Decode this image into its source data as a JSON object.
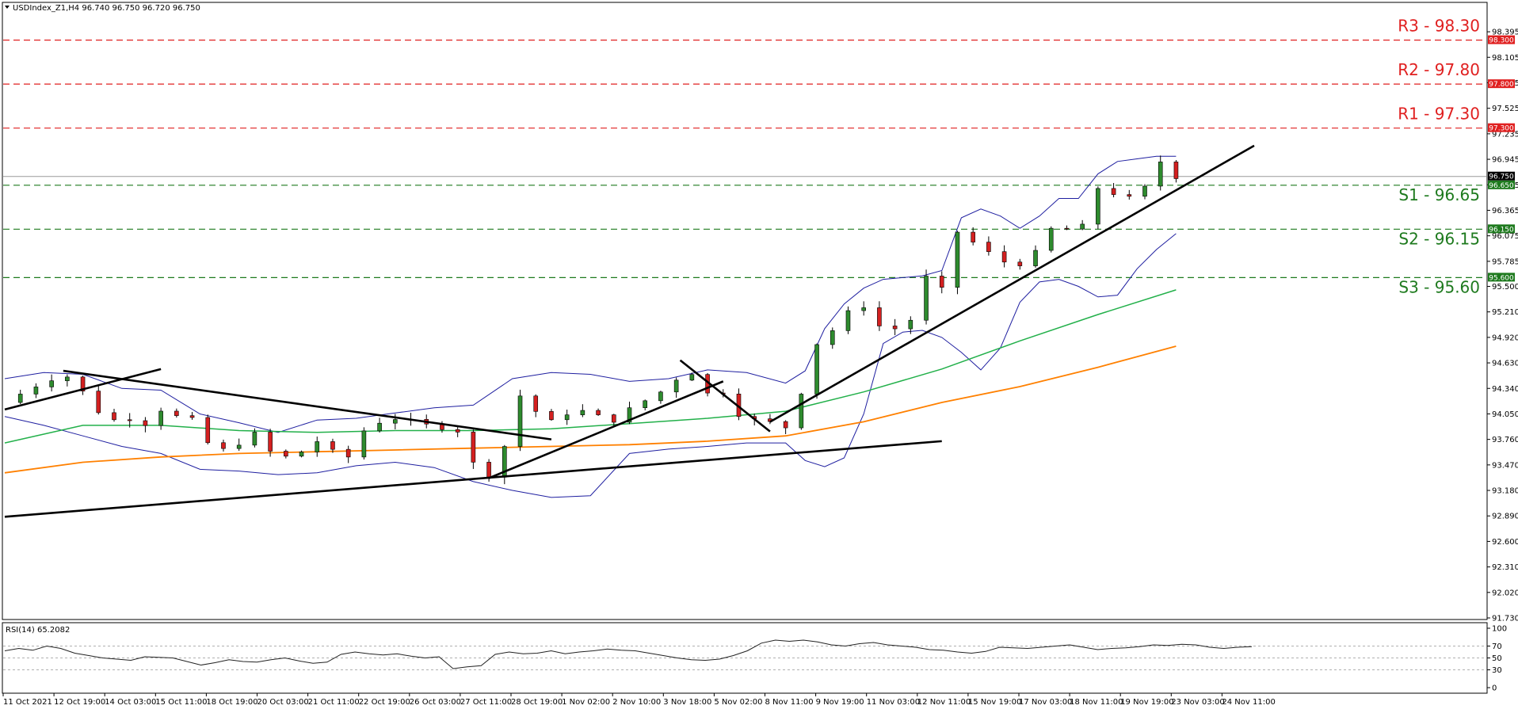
{
  "header": {
    "symbol_line": "USDIndex_Z1,H4  96.740 96.750 96.720 96.750",
    "rsi_line": "RSI(14) 65.2082"
  },
  "colors": {
    "bull": "#2e8b2e",
    "bear": "#d42020",
    "bb": "#1f1fa0",
    "sma100": "#22b04a",
    "sma200": "#ff8000",
    "resistance": "#e02020",
    "support": "#1e7a1e",
    "trend": "#000000",
    "badge_current": "#000000"
  },
  "chart_data": [
    {
      "type": "candlestick",
      "name": "USDIndex_Z1,H4",
      "ylim": [
        91.73,
        98.45
      ],
      "y_ticks": [
        "98.395",
        "98.105",
        "97.815",
        "97.525",
        "97.235",
        "96.945",
        "96.655",
        "96.365",
        "96.075",
        "95.785",
        "95.500",
        "95.210",
        "94.920",
        "94.630",
        "94.340",
        "94.050",
        "93.760",
        "93.470",
        "93.180",
        "92.890",
        "92.600",
        "92.310",
        "92.020",
        "91.730"
      ],
      "x_labels": [
        "11 Oct 2021",
        "12 Oct 19:00",
        "14 Oct 03:00",
        "15 Oct 11:00",
        "18 Oct 19:00",
        "20 Oct 03:00",
        "21 Oct 11:00",
        "22 Oct 19:00",
        "26 Oct 03:00",
        "27 Oct 11:00",
        "28 Oct 19:00",
        "1 Nov 02:00",
        "2 Nov 10:00",
        "3 Nov 18:00",
        "5 Nov 02:00",
        "8 Nov 11:00",
        "9 Nov 19:00",
        "11 Nov 03:00",
        "12 Nov 11:00",
        "15 Nov 19:00",
        "17 Nov 03:00",
        "18 Nov 11:00",
        "19 Nov 19:00",
        "23 Nov 03:00",
        "24 Nov 11:00"
      ],
      "close_path": [
        [
          0,
          94.18
        ],
        [
          5,
          94.3
        ],
        [
          10,
          94.42
        ],
        [
          15,
          94.5
        ],
        [
          17,
          94.45
        ],
        [
          20,
          94.3
        ],
        [
          24,
          94.08
        ],
        [
          28,
          93.98
        ],
        [
          32,
          94.0
        ],
        [
          36,
          93.94
        ],
        [
          40,
          94.1
        ],
        [
          44,
          94.02
        ],
        [
          48,
          93.98
        ],
        [
          52,
          93.72
        ],
        [
          56,
          93.64
        ],
        [
          60,
          93.72
        ],
        [
          64,
          93.82
        ],
        [
          68,
          93.62
        ],
        [
          72,
          93.56
        ],
        [
          76,
          93.62
        ],
        [
          80,
          93.74
        ],
        [
          84,
          93.62
        ],
        [
          88,
          93.56
        ],
        [
          92,
          93.86
        ],
        [
          96,
          93.96
        ],
        [
          100,
          94.0
        ],
        [
          104,
          93.96
        ],
        [
          108,
          93.92
        ],
        [
          112,
          93.9
        ],
        [
          116,
          93.86
        ],
        [
          118,
          93.82
        ],
        [
          121,
          93.32
        ],
        [
          124,
          93.36
        ],
        [
          127,
          93.4
        ],
        [
          130,
          94.25
        ],
        [
          133,
          94.26
        ],
        [
          136,
          94.08
        ],
        [
          140,
          93.96
        ],
        [
          144,
          94.06
        ],
        [
          148,
          94.08
        ],
        [
          152,
          94.02
        ],
        [
          156,
          93.98
        ],
        [
          160,
          94.1
        ],
        [
          164,
          94.2
        ],
        [
          168,
          94.3
        ],
        [
          172,
          94.45
        ],
        [
          176,
          94.52
        ],
        [
          180,
          94.28
        ],
        [
          184,
          94.3
        ],
        [
          188,
          94.05
        ],
        [
          192,
          93.98
        ],
        [
          196,
          93.95
        ],
        [
          200,
          93.9
        ],
        [
          202,
          94.08
        ],
        [
          204,
          94.3
        ],
        [
          206,
          94.68
        ],
        [
          208,
          94.85
        ],
        [
          212,
          95.0
        ],
        [
          216,
          95.2
        ],
        [
          220,
          95.28
        ],
        [
          224,
          95.05
        ],
        [
          228,
          95.02
        ],
        [
          232,
          95.12
        ],
        [
          236,
          95.6
        ],
        [
          240,
          95.46
        ],
        [
          242,
          95.72
        ],
        [
          244,
          96.12
        ],
        [
          246,
          96.22
        ],
        [
          248,
          96.0
        ],
        [
          252,
          95.88
        ],
        [
          256,
          95.78
        ],
        [
          260,
          95.76
        ],
        [
          262,
          95.62
        ],
        [
          264,
          95.88
        ],
        [
          266,
          96.25
        ],
        [
          268,
          96.15
        ],
        [
          272,
          96.15
        ],
        [
          276,
          96.18
        ],
        [
          280,
          96.62
        ],
        [
          284,
          96.56
        ],
        [
          288,
          96.5
        ],
        [
          292,
          96.62
        ],
        [
          294,
          96.78
        ],
        [
          296,
          96.92
        ],
        [
          298,
          96.86
        ],
        [
          300,
          96.75
        ]
      ],
      "bb_upper": [
        [
          0,
          94.45
        ],
        [
          10,
          94.52
        ],
        [
          20,
          94.5
        ],
        [
          30,
          94.34
        ],
        [
          40,
          94.32
        ],
        [
          50,
          94.05
        ],
        [
          60,
          93.95
        ],
        [
          70,
          93.84
        ],
        [
          80,
          93.98
        ],
        [
          90,
          94.0
        ],
        [
          100,
          94.06
        ],
        [
          110,
          94.12
        ],
        [
          120,
          94.15
        ],
        [
          130,
          94.45
        ],
        [
          140,
          94.52
        ],
        [
          150,
          94.5
        ],
        [
          160,
          94.42
        ],
        [
          170,
          94.45
        ],
        [
          180,
          94.55
        ],
        [
          190,
          94.52
        ],
        [
          200,
          94.4
        ],
        [
          205,
          94.54
        ],
        [
          210,
          95.02
        ],
        [
          215,
          95.3
        ],
        [
          220,
          95.48
        ],
        [
          225,
          95.58
        ],
        [
          230,
          95.6
        ],
        [
          235,
          95.62
        ],
        [
          240,
          95.68
        ],
        [
          245,
          96.28
        ],
        [
          250,
          96.38
        ],
        [
          255,
          96.3
        ],
        [
          260,
          96.16
        ],
        [
          265,
          96.3
        ],
        [
          270,
          96.5
        ],
        [
          275,
          96.5
        ],
        [
          280,
          96.78
        ],
        [
          285,
          96.92
        ],
        [
          290,
          96.95
        ],
        [
          295,
          96.98
        ],
        [
          300,
          96.98
        ]
      ],
      "bb_lower": [
        [
          0,
          94.02
        ],
        [
          10,
          93.92
        ],
        [
          20,
          93.8
        ],
        [
          30,
          93.68
        ],
        [
          40,
          93.6
        ],
        [
          50,
          93.42
        ],
        [
          60,
          93.4
        ],
        [
          70,
          93.36
        ],
        [
          80,
          93.38
        ],
        [
          90,
          93.46
        ],
        [
          100,
          93.5
        ],
        [
          110,
          93.44
        ],
        [
          120,
          93.28
        ],
        [
          130,
          93.18
        ],
        [
          140,
          93.1
        ],
        [
          150,
          93.12
        ],
        [
          160,
          93.6
        ],
        [
          170,
          93.65
        ],
        [
          180,
          93.68
        ],
        [
          190,
          93.72
        ],
        [
          200,
          93.72
        ],
        [
          205,
          93.52
        ],
        [
          210,
          93.45
        ],
        [
          215,
          93.55
        ],
        [
          220,
          94.05
        ],
        [
          225,
          94.85
        ],
        [
          230,
          94.98
        ],
        [
          235,
          95.0
        ],
        [
          240,
          94.92
        ],
        [
          245,
          94.75
        ],
        [
          250,
          94.55
        ],
        [
          255,
          94.8
        ],
        [
          260,
          95.32
        ],
        [
          265,
          95.55
        ],
        [
          270,
          95.58
        ],
        [
          275,
          95.5
        ],
        [
          280,
          95.38
        ],
        [
          285,
          95.4
        ],
        [
          290,
          95.7
        ],
        [
          295,
          95.92
        ],
        [
          300,
          96.1
        ]
      ],
      "sma100": [
        [
          0,
          93.72
        ],
        [
          20,
          93.92
        ],
        [
          40,
          93.92
        ],
        [
          60,
          93.86
        ],
        [
          80,
          93.84
        ],
        [
          100,
          93.86
        ],
        [
          120,
          93.86
        ],
        [
          140,
          93.88
        ],
        [
          160,
          93.94
        ],
        [
          180,
          94.0
        ],
        [
          200,
          94.08
        ],
        [
          220,
          94.3
        ],
        [
          240,
          94.56
        ],
        [
          260,
          94.88
        ],
        [
          280,
          95.18
        ],
        [
          300,
          95.46
        ]
      ],
      "sma200": [
        [
          0,
          93.38
        ],
        [
          20,
          93.5
        ],
        [
          40,
          93.56
        ],
        [
          60,
          93.6
        ],
        [
          80,
          93.62
        ],
        [
          100,
          93.64
        ],
        [
          120,
          93.66
        ],
        [
          140,
          93.68
        ],
        [
          160,
          93.7
        ],
        [
          180,
          93.74
        ],
        [
          200,
          93.8
        ],
        [
          220,
          93.96
        ],
        [
          240,
          94.18
        ],
        [
          260,
          94.36
        ],
        [
          280,
          94.58
        ],
        [
          300,
          94.82
        ]
      ],
      "levels": [
        {
          "label": "R3 - 98.30",
          "value": 98.3,
          "badge": "98.300",
          "kind": "resistance"
        },
        {
          "label": "R2 - 97.80",
          "value": 97.8,
          "badge": "97.800",
          "kind": "resistance"
        },
        {
          "label": "R1 - 97.30",
          "value": 97.3,
          "badge": "97.300",
          "kind": "resistance"
        },
        {
          "label": "S1 - 96.65",
          "value": 96.65,
          "badge": "96.650",
          "kind": "support"
        },
        {
          "label": "S2 - 96.15",
          "value": 96.15,
          "badge": "96.150",
          "kind": "support"
        },
        {
          "label": "S3 - 95.60",
          "value": 95.6,
          "badge": "95.600",
          "kind": "support"
        }
      ],
      "current_price": {
        "value": 96.75,
        "badge": "96.750"
      },
      "trendlines": [
        {
          "from": [
            0,
            94.1
          ],
          "to": [
            40,
            94.56
          ]
        },
        {
          "from": [
            15,
            94.54
          ],
          "to": [
            140,
            93.76
          ]
        },
        {
          "from": [
            0,
            92.88
          ],
          "to": [
            240,
            93.74
          ]
        },
        {
          "from": [
            124,
            93.32
          ],
          "to": [
            184,
            94.42
          ]
        },
        {
          "from": [
            173,
            94.66
          ],
          "to": [
            196,
            93.85
          ]
        },
        {
          "from": [
            196,
            93.96
          ],
          "to": [
            320,
            97.1
          ]
        }
      ]
    },
    {
      "type": "line",
      "name": "RSI(14) 65.2082",
      "ylim": [
        0,
        100
      ],
      "y_ticks": [
        "100",
        "70",
        "50",
        "30",
        "0"
      ],
      "levels": [
        70,
        50,
        30
      ],
      "values": [
        62,
        66,
        63,
        70,
        66,
        58,
        54,
        50,
        48,
        46,
        52,
        51,
        50,
        44,
        38,
        42,
        47,
        44,
        43,
        47,
        50,
        45,
        41,
        43,
        56,
        60,
        57,
        55,
        57,
        53,
        50,
        52,
        32,
        35,
        37,
        56,
        60,
        57,
        58,
        62,
        57,
        60,
        62,
        65,
        63,
        62,
        58,
        54,
        50,
        47,
        46,
        48,
        54,
        62,
        75,
        80,
        78,
        80,
        77,
        72,
        70,
        74,
        76,
        72,
        70,
        68,
        64,
        63,
        60,
        58,
        61,
        68,
        67,
        66,
        68,
        70,
        72,
        68,
        64,
        66,
        67,
        69,
        72,
        71,
        73,
        72,
        68,
        66,
        68,
        69
      ]
    }
  ]
}
